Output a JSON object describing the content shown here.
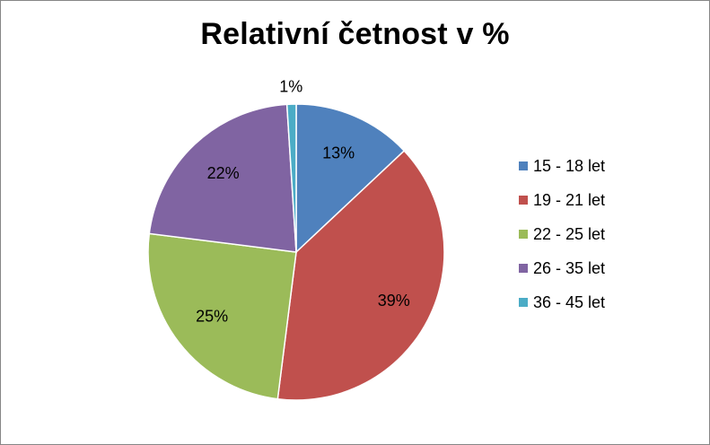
{
  "chart_data": {
    "type": "pie",
    "title": "Relativní četnost v %",
    "categories": [
      "15 - 18 let",
      "19 - 21 let",
      "22 - 25 let",
      "26 - 35 let",
      "36 - 45 let"
    ],
    "values": [
      13,
      39,
      25,
      22,
      1
    ],
    "data_labels": [
      "13%",
      "39%",
      "25%",
      "22%",
      "1%"
    ],
    "colors": [
      "#4F81BD",
      "#C0504D",
      "#9BBB59",
      "#8064A2",
      "#4BACC6"
    ],
    "legend_position": "right",
    "start_angle": "top, clockwise"
  }
}
